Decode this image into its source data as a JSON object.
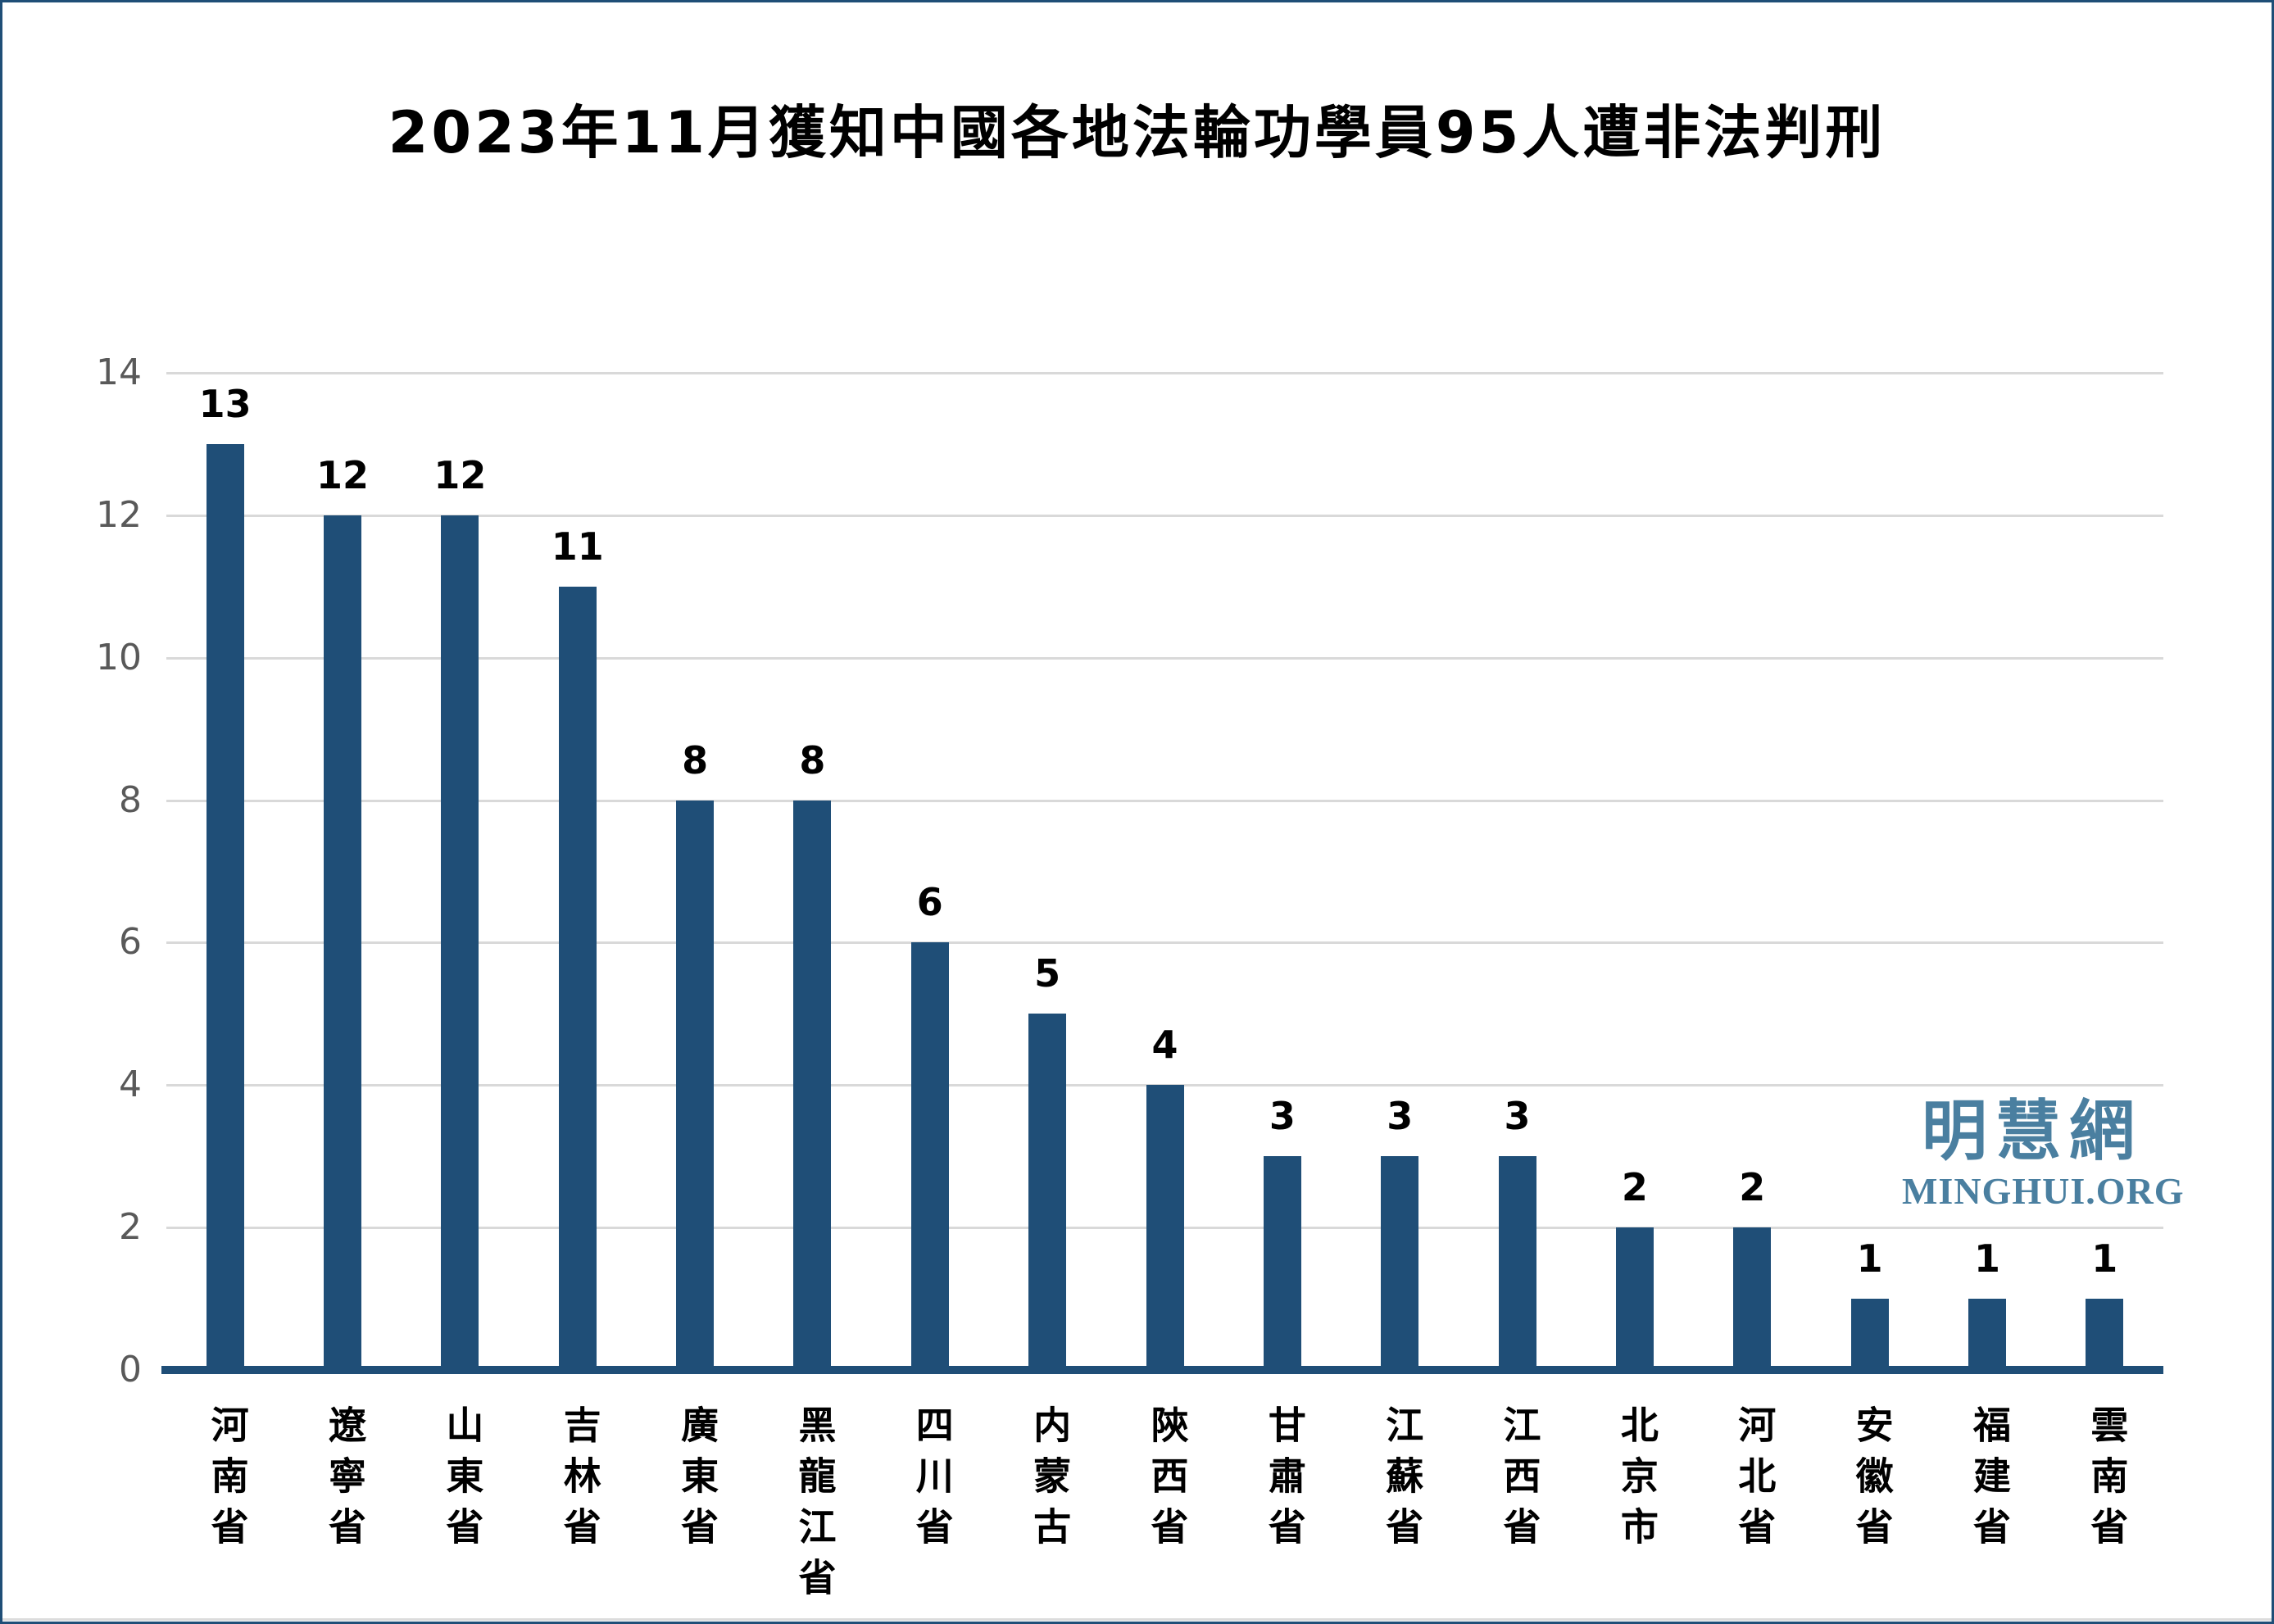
{
  "title": "2023年11月獲知中國各地法輪功學員95人遭非法判刑",
  "watermark": {
    "cjk": "明慧網",
    "latin": "MINGHUI.ORG"
  },
  "colors": {
    "bar": "#1f4e77",
    "axis": "#1f4e77",
    "frame_border": "#1f4e77",
    "gridline": "#d9d9d9",
    "tick_text": "#595959",
    "label_text": "#000000",
    "watermark": "#4a7fa0",
    "background": "#ffffff"
  },
  "chart_data": {
    "type": "bar",
    "title": "2023年11月獲知中國各地法輪功學員95人遭非法判刑",
    "categories": [
      "河南省",
      "遼寧省",
      "山東省",
      "吉林省",
      "廣東省",
      "黑龍江省",
      "四川省",
      "内蒙古",
      "陝西省",
      "甘肅省",
      "江蘇省",
      "江西省",
      "北京市",
      "河北省",
      "安徽省",
      "福建省",
      "雲南省"
    ],
    "values": [
      13,
      12,
      12,
      11,
      8,
      8,
      6,
      5,
      4,
      3,
      3,
      3,
      2,
      2,
      1,
      1,
      1
    ],
    "xlabel": "",
    "ylabel": "",
    "ylim": [
      0,
      14
    ],
    "yticks": [
      0,
      2,
      4,
      6,
      8,
      10,
      12,
      14
    ],
    "grid": true,
    "legend": false,
    "value_labels": true,
    "bar_color": "#1f4e77"
  }
}
